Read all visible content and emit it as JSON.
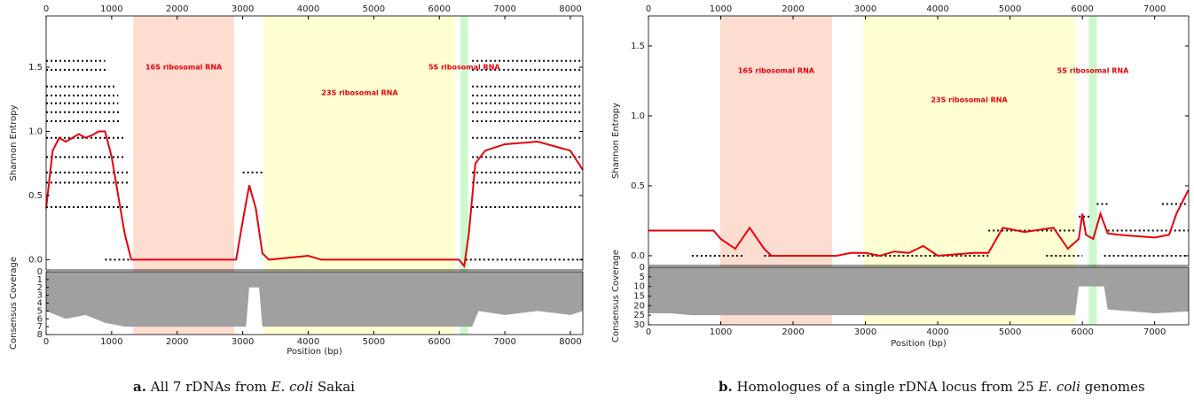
{
  "chart_data": [
    {
      "type": "line",
      "xlabel": "Position (bp)",
      "ylabel": "Shannon Entropy",
      "xlim": [
        0,
        8190
      ],
      "xticks": [
        0,
        1000,
        2000,
        3000,
        4000,
        5000,
        6000,
        7000,
        8000
      ],
      "ylim": [
        -0.08,
        1.9
      ],
      "yticks": [
        {
          "value": 0,
          "label": "0.0"
        },
        0.5,
        {
          "value": 1,
          "label": "1.0"
        },
        1.5
      ],
      "regions": [
        {
          "label": "16S ribosomal RNA",
          "start": 1330,
          "end": 2870,
          "color": "#fdd9cb"
        },
        {
          "label": "23S ribosomal RNA",
          "start": 3330,
          "end": 6240,
          "color": "#ffffcc"
        },
        {
          "label": "5S ribosomal RNA",
          "start": 6320,
          "end": 6440,
          "color": "#c8f7c5"
        }
      ],
      "series": [
        {
          "color": "#e8000b",
          "x": [
            0,
            100,
            200,
            300,
            400,
            500,
            600,
            700,
            800,
            900,
            1000,
            1100,
            1200,
            1300,
            1400,
            2500,
            2900,
            3000,
            3100,
            3200,
            3300,
            3400,
            4000,
            4200,
            6300,
            6380,
            6450,
            6550,
            6700,
            7000,
            7500,
            8000,
            8190
          ],
          "values": [
            0.4,
            0.85,
            0.95,
            0.92,
            0.95,
            0.98,
            0.95,
            0.97,
            1.0,
            1.0,
            0.8,
            0.5,
            0.2,
            0.0,
            0.0,
            0.0,
            0.0,
            0.3,
            0.58,
            0.4,
            0.05,
            0.0,
            0.03,
            0.0,
            0.0,
            -0.05,
            0.2,
            0.75,
            0.85,
            0.9,
            0.92,
            0.85,
            0.7
          ]
        }
      ],
      "dot_rows": {
        "y": [
          0.41,
          0.6,
          0.68,
          0.8,
          0.95,
          1.08,
          1.15,
          1.22,
          1.28,
          1.35,
          1.48,
          1.55,
          0.41,
          0.6,
          0.68,
          0.8,
          0.95,
          1.08,
          1.15,
          1.22,
          1.28,
          1.35,
          1.48,
          1.55,
          0,
          0,
          0.68
        ],
        "x_start": [
          0,
          0,
          0,
          0,
          0,
          0,
          0,
          0,
          0,
          0,
          0,
          0,
          6500,
          6500,
          6500,
          6500,
          6500,
          6500,
          6500,
          6500,
          6500,
          6500,
          6500,
          6500,
          900,
          6400,
          3000
        ],
        "x_end": [
          1250,
          1250,
          1250,
          1200,
          1200,
          1150,
          1150,
          1100,
          1100,
          1050,
          950,
          900,
          8190,
          8190,
          8190,
          8190,
          8190,
          8190,
          8190,
          8190,
          8190,
          8190,
          8190,
          8190,
          1300,
          8190,
          3300
        ]
      },
      "coverage": {
        "ylabel": "Consensus Coverage",
        "ylim": [
          0,
          8
        ],
        "yticks": [
          0,
          1,
          2,
          3,
          4,
          5,
          6,
          7,
          8
        ],
        "color": "#a0a0a0",
        "x": [
          0,
          300,
          600,
          900,
          1200,
          3050,
          3100,
          3250,
          3300,
          6500,
          6600,
          7000,
          7500,
          8000,
          8190
        ],
        "values": [
          5,
          6,
          5.5,
          6.5,
          7,
          7,
          2,
          2,
          7,
          7,
          5,
          5.5,
          5,
          5.5,
          5
        ]
      },
      "caption": {
        "label": "a.",
        "text": "All 7 rDNAs from ",
        "italic": "E. coli",
        "rest": " Sakai"
      }
    },
    {
      "type": "line",
      "xlabel": "Position (bp)",
      "ylabel": "Shannon Entropy",
      "xlim": [
        0,
        7470
      ],
      "xticks": [
        0,
        1000,
        2000,
        3000,
        4000,
        5000,
        6000,
        7000
      ],
      "ylim": [
        -0.07,
        1.715
      ],
      "yticks": [
        {
          "value": 0,
          "label": "0.0"
        },
        0.5,
        {
          "value": 1,
          "label": "1.0"
        },
        1.5
      ],
      "regions": [
        {
          "label": "16S ribosomal RNA",
          "start": 990,
          "end": 2540,
          "color": "#fdd9cb"
        },
        {
          "label": "23S ribosomal RNA",
          "start": 2970,
          "end": 5900,
          "color": "#ffffcc"
        },
        {
          "label": "5S ribosomal RNA",
          "start": 6090,
          "end": 6200,
          "color": "#c8f7c5"
        }
      ],
      "series": [
        {
          "color": "#e8000b",
          "x": [
            0,
            500,
            900,
            1000,
            1200,
            1400,
            1600,
            1700,
            2200,
            2600,
            2800,
            3000,
            3200,
            3400,
            3600,
            3800,
            4000,
            4500,
            4700,
            4900,
            5200,
            5600,
            5800,
            5950,
            6000,
            6050,
            6150,
            6250,
            6350,
            6500,
            7000,
            7200,
            7300,
            7466
          ],
          "values": [
            0.18,
            0.18,
            0.18,
            0.12,
            0.05,
            0.2,
            0.05,
            0.0,
            0.0,
            0.0,
            0.02,
            0.02,
            0.0,
            0.03,
            0.02,
            0.07,
            0.0,
            0.02,
            0.02,
            0.2,
            0.17,
            0.2,
            0.05,
            0.12,
            0.3,
            0.15,
            0.12,
            0.3,
            0.16,
            0.15,
            0.13,
            0.15,
            0.3,
            0.47
          ]
        }
      ],
      "dot_rows": {
        "y": [
          0,
          0,
          0,
          0,
          0,
          0.18,
          0.18,
          0.18,
          0.28,
          0.37,
          0.37
        ],
        "x_start": [
          600,
          1600,
          2900,
          5500,
          6300,
          0,
          4700,
          6350,
          5950,
          6200,
          7100
        ],
        "x_end": [
          1300,
          2500,
          4700,
          6000,
          7466,
          900,
          5900,
          7466,
          6100,
          6350,
          7466
        ]
      },
      "coverage": {
        "ylabel": "Consensus Coverage",
        "ylim": [
          0,
          30
        ],
        "yticks": [
          0,
          5,
          10,
          15,
          20,
          25,
          30
        ],
        "color": "#a0a0a0",
        "x": [
          0,
          300,
          600,
          1000,
          2500,
          5900,
          5950,
          6300,
          6350,
          7000,
          7466
        ],
        "values": [
          24,
          24,
          25,
          25,
          25,
          25,
          10,
          10,
          22,
          24,
          23
        ]
      },
      "caption": {
        "label": "b.",
        "text": "Homologues of a single rDNA locus from 25 ",
        "italic": "E. coli",
        "rest": " genomes"
      }
    }
  ]
}
